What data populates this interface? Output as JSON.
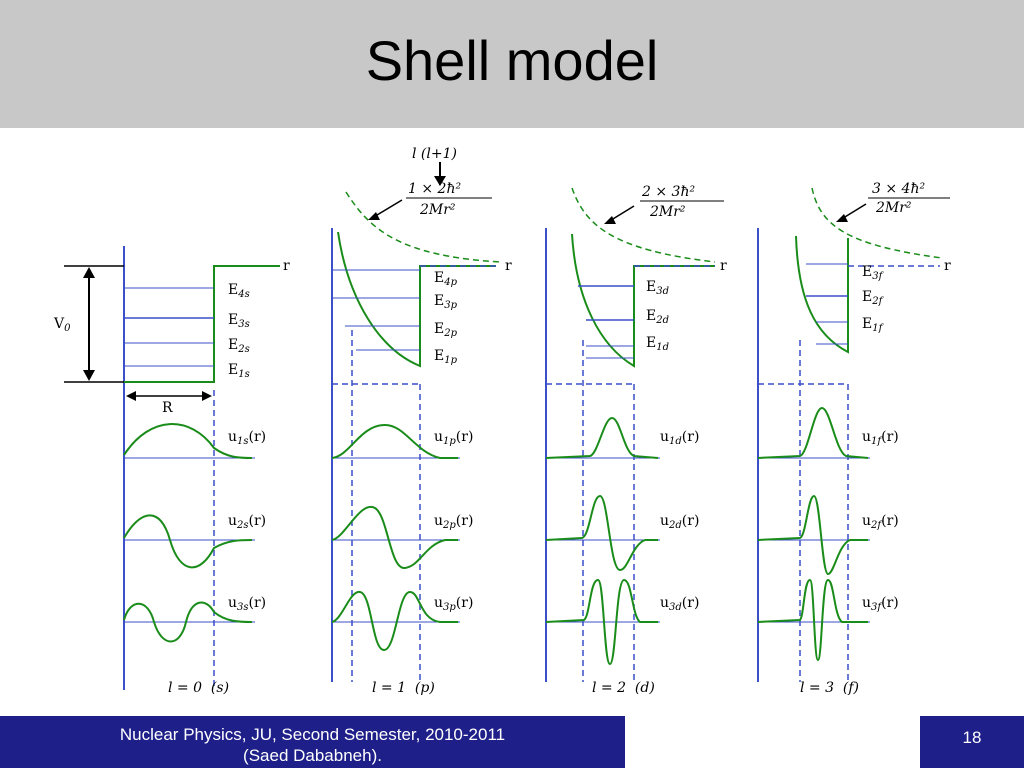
{
  "slide": {
    "title": "Shell model",
    "footer_line1": "Nuclear Physics, JU, Second Semester, 2010-2011",
    "footer_line2": "(Saed Dababneh).",
    "page_number": "18"
  },
  "diagram": {
    "top_label": "l (l+1)",
    "depth_label": "V",
    "depth_sub": "0",
    "radius_label": "R",
    "axis_r": "r",
    "columns": [
      {
        "energy_levels": [
          {
            "base": "E",
            "sub": "4s"
          },
          {
            "base": "E",
            "sub": "3s"
          },
          {
            "base": "E",
            "sub": "2s"
          },
          {
            "base": "E",
            "sub": "1s"
          }
        ],
        "wavefunctions": [
          {
            "base": "u",
            "sub": "1s",
            "arg": "(r)"
          },
          {
            "base": "u",
            "sub": "2s",
            "arg": "(r)"
          },
          {
            "base": "u",
            "sub": "3s",
            "arg": "(r)"
          }
        ],
        "caption": "l = 0  (s)"
      },
      {
        "centrifugal": {
          "num": "1 × 2ħ²",
          "den": "2Mr²"
        },
        "energy_levels": [
          {
            "base": "E",
            "sub": "4p"
          },
          {
            "base": "E",
            "sub": "3p"
          },
          {
            "base": "E",
            "sub": "2p"
          },
          {
            "base": "E",
            "sub": "1p"
          }
        ],
        "wavefunctions": [
          {
            "base": "u",
            "sub": "1p",
            "arg": "(r)"
          },
          {
            "base": "u",
            "sub": "2p",
            "arg": "(r)"
          },
          {
            "base": "u",
            "sub": "3p",
            "arg": "(r)"
          }
        ],
        "caption": "l = 1  (p)"
      },
      {
        "centrifugal": {
          "num": "2 × 3ħ²",
          "den": "2Mr²"
        },
        "energy_levels": [
          {
            "base": "E",
            "sub": "3d"
          },
          {
            "base": "E",
            "sub": "2d"
          },
          {
            "base": "E",
            "sub": "1d"
          }
        ],
        "wavefunctions": [
          {
            "base": "u",
            "sub": "1d",
            "arg": "(r)"
          },
          {
            "base": "u",
            "sub": "2d",
            "arg": "(r)"
          },
          {
            "base": "u",
            "sub": "3d",
            "arg": "(r)"
          }
        ],
        "caption": "l = 2  (d)"
      },
      {
        "centrifugal": {
          "num": "3 × 4ħ²",
          "den": "2Mr²"
        },
        "energy_levels": [
          {
            "base": "E",
            "sub": "3f"
          },
          {
            "base": "E",
            "sub": "2f"
          },
          {
            "base": "E",
            "sub": "1f"
          }
        ],
        "wavefunctions": [
          {
            "base": "u",
            "sub": "1f",
            "arg": "(r)"
          },
          {
            "base": "u",
            "sub": "2f",
            "arg": "(r)"
          },
          {
            "base": "u",
            "sub": "3f",
            "arg": "(r)"
          }
        ],
        "caption": "l = 3  (f)"
      }
    ]
  },
  "colors": {
    "curve": "#1a8c1a",
    "axis": "#3a4fc8",
    "title_bar": "#c8c8c8",
    "footer": "#1f1f8a"
  }
}
